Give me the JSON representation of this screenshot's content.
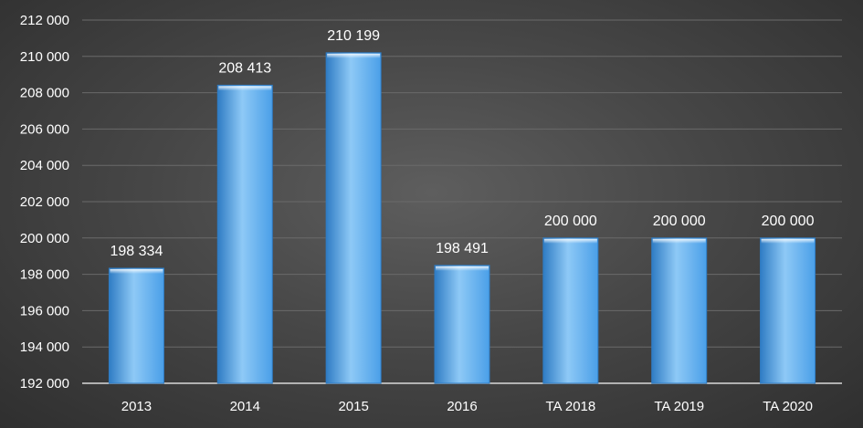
{
  "chart_data": {
    "type": "bar",
    "title": "",
    "xlabel": "",
    "ylabel": "",
    "categories": [
      "2013",
      "2014",
      "2015",
      "2016",
      "TA 2018",
      "TA 2019",
      "TA 2020"
    ],
    "values": [
      198334,
      208413,
      210199,
      198491,
      200000,
      200000,
      200000
    ],
    "value_labels": [
      "198 334",
      "208 413",
      "210 199",
      "198 491",
      "200 000",
      "200 000",
      "200 000"
    ],
    "ylim": [
      192000,
      212000
    ],
    "yticks": [
      192000,
      194000,
      196000,
      198000,
      200000,
      202000,
      204000,
      206000,
      208000,
      210000,
      212000
    ],
    "ytick_labels": [
      "192 000",
      "194 000",
      "196 000",
      "198 000",
      "200 000",
      "202 000",
      "204 000",
      "206 000",
      "208 000",
      "210 000",
      "212 000"
    ],
    "grid": true,
    "legend": "none",
    "colors": {
      "bar": "#4a9fe8",
      "bar_light": "#8ec9f6",
      "bar_dark": "#2f7cc4",
      "gridline": "#6a6a6a",
      "axis": "#d9d9d9",
      "text": "#ffffff"
    }
  }
}
